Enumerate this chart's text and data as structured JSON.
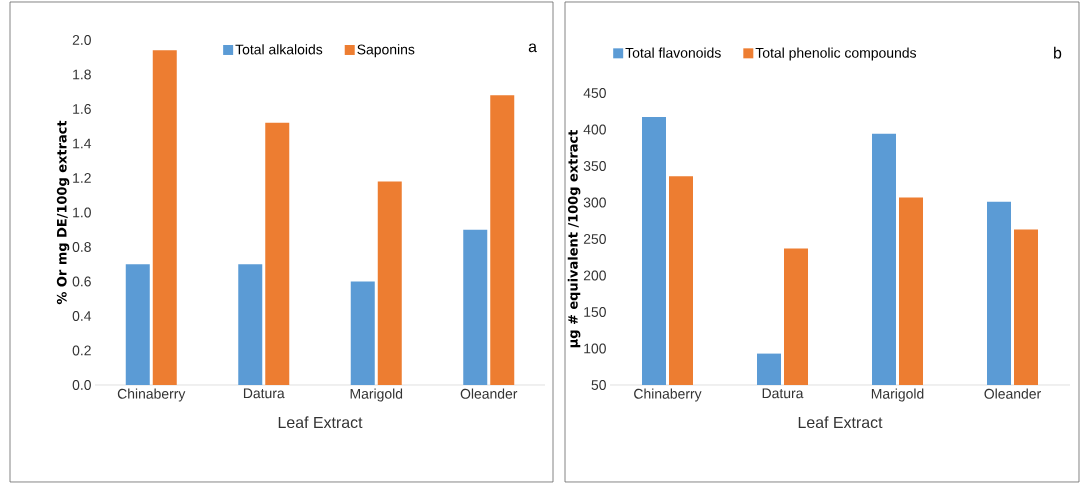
{
  "chart_data": [
    {
      "type": "bar",
      "categories": [
        "Chinaberry",
        "Datura",
        "Marigold",
        "Oleander"
      ],
      "series": [
        {
          "name": "Total alkaloids",
          "color": "#5b9bd5",
          "values": [
            0.7,
            0.7,
            0.6,
            0.9
          ]
        },
        {
          "name": "Saponins",
          "color": "#ed7d31",
          "values": [
            1.94,
            1.52,
            1.18,
            1.68
          ]
        }
      ],
      "xlabel": "Leaf Extract",
      "ylabel": "% Or mg DE/100g extract",
      "ylim": [
        0,
        2.0
      ],
      "yticks": [
        {
          "value": 0,
          "label": "0.0"
        },
        {
          "value": 0.2,
          "label": "0.2"
        },
        {
          "value": 0.4,
          "label": "0.4"
        },
        {
          "value": 0.6,
          "label": "0.6"
        },
        {
          "value": 0.8,
          "label": "0.8"
        },
        {
          "value": 1.0,
          "label": "1.0"
        },
        {
          "value": 1.2,
          "label": "1.2"
        },
        {
          "value": 1.4,
          "label": "1.4"
        },
        {
          "value": 1.6,
          "label": "1.6"
        },
        {
          "value": 1.8,
          "label": "1.8"
        },
        {
          "value": 2.0,
          "label": "2.0"
        }
      ],
      "legend": "top",
      "annotations": [
        "a"
      ]
    },
    {
      "type": "bar",
      "categories": [
        "Chinaberry",
        "Datura",
        "Marigold",
        "Oleander"
      ],
      "series": [
        {
          "name": "Total flavonoids",
          "color": "#5b9bd5",
          "values": [
            417,
            93,
            394,
            301
          ]
        },
        {
          "name": "Total phenolic compounds",
          "color": "#ed7d31",
          "values": [
            336,
            237,
            307,
            263
          ]
        }
      ],
      "xlabel": "Leaf Extract",
      "ylabel": "µg # equivalent /100g extract",
      "ylim": [
        50,
        450
      ],
      "yticks": [
        50,
        100,
        150,
        200,
        250,
        300,
        350,
        400,
        450
      ],
      "legend": "top left",
      "annotations": [
        "b"
      ]
    }
  ]
}
